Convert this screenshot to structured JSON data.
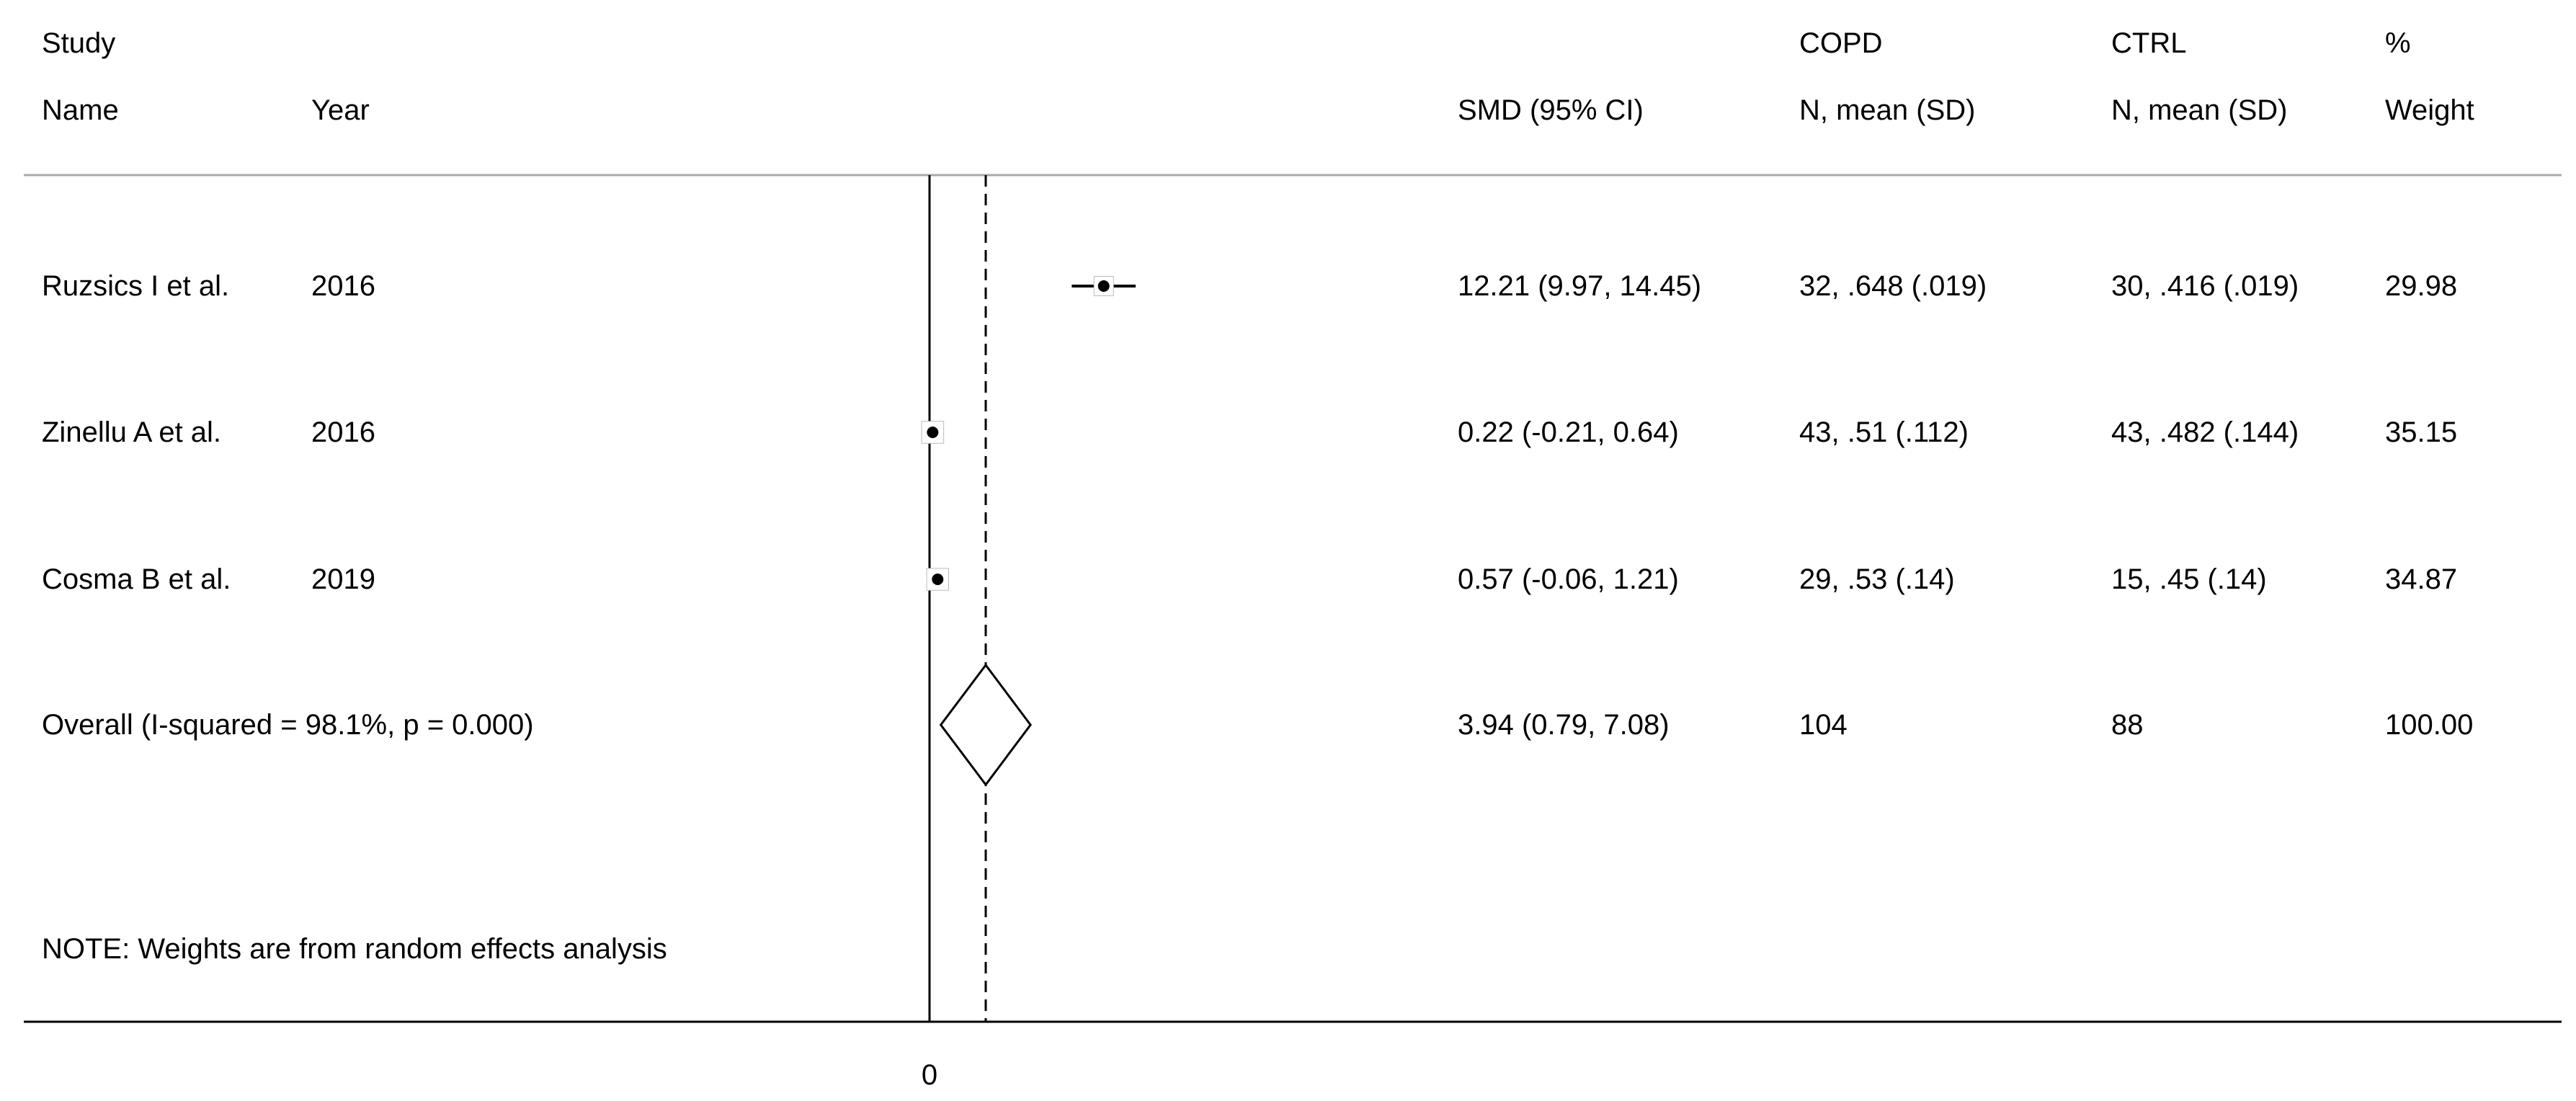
{
  "header": {
    "study_line1": "Study",
    "study_line2": "Name",
    "year": "Year",
    "smd": "SMD (95% CI)",
    "copd_line1": "COPD",
    "copd_line2": "N, mean (SD)",
    "ctrl_line1": "CTRL",
    "ctrl_line2": "N, mean (SD)",
    "weight_line1": "%",
    "weight_line2": "Weight"
  },
  "rows": [
    {
      "name": "Ruzsics I et al.",
      "year": "2016",
      "ci_text": "12.21 (9.97, 14.45)",
      "copd": "32, .648 (.019)",
      "ctrl": "30, .416 (.019)",
      "weight": "29.98"
    },
    {
      "name": "Zinellu A et al.",
      "year": "2016",
      "ci_text": "0.22 (-0.21, 0.64)",
      "copd": "43, .51 (.112)",
      "ctrl": "43, .482 (.144)",
      "weight": "35.15"
    },
    {
      "name": "Cosma B et al.",
      "year": "2019",
      "ci_text": "0.57 (-0.06, 1.21)",
      "copd": "29, .53 (.14)",
      "ctrl": "15, .45 (.14)",
      "weight": "34.87"
    }
  ],
  "overall": {
    "label": "Overall  (I-squared = 98.1%, p = 0.000)",
    "ci_text": "3.94 (0.79, 7.08)",
    "copd": "104",
    "ctrl": "88",
    "weight": "100.00"
  },
  "note": "NOTE: Weights are from random effects analysis",
  "chart_data": {
    "type": "forest",
    "x_tick_labels": [
      "0"
    ],
    "null_line": 0,
    "studies": [
      {
        "name": "Ruzsics I et al.",
        "year": "2016",
        "smd": 12.21,
        "lower": 9.97,
        "upper": 14.45,
        "weight": 29.98
      },
      {
        "name": "Zinellu A et al.",
        "year": "2016",
        "smd": 0.22,
        "lower": -0.21,
        "upper": 0.64,
        "weight": 35.15
      },
      {
        "name": "Cosma B et al.",
        "year": "2019",
        "smd": 0.57,
        "lower": -0.06,
        "upper": 1.21,
        "weight": 34.87
      }
    ],
    "overall": {
      "smd": 3.94,
      "lower": 0.79,
      "upper": 7.08
    }
  }
}
